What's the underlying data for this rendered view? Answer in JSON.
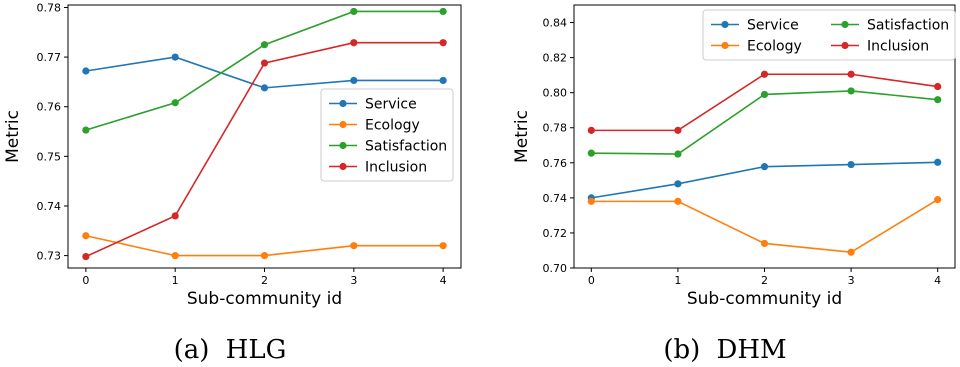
{
  "figure": {
    "panels": [
      {
        "caption_tag": "(a)",
        "caption_name": "HLG"
      },
      {
        "caption_tag": "(b)",
        "caption_name": "DHM"
      }
    ]
  },
  "colors": {
    "Service": "#1f77b4",
    "Ecology": "#ff7f0e",
    "Satisfaction": "#2ca02c",
    "Inclusion": "#d62728"
  },
  "chart_data": [
    {
      "type": "line",
      "title": "",
      "xlabel": "Sub-community id",
      "ylabel": "Metric",
      "x": [
        0,
        1,
        2,
        3,
        4
      ],
      "xticks": [
        "0",
        "1",
        "2",
        "3",
        "4"
      ],
      "ylim": [
        0.7275,
        0.7805
      ],
      "yticks": [
        0.73,
        0.74,
        0.75,
        0.76,
        0.77,
        0.78
      ],
      "ytick_labels": [
        "0.73",
        "0.74",
        "0.75",
        "0.76",
        "0.77",
        "0.78"
      ],
      "legend_position": "center-right",
      "legend_columns": 1,
      "grid": false,
      "series": [
        {
          "name": "Service",
          "values": [
            0.7672,
            0.77,
            0.7638,
            0.7653,
            0.7653
          ]
        },
        {
          "name": "Ecology",
          "values": [
            0.734,
            0.73,
            0.73,
            0.732,
            0.732
          ]
        },
        {
          "name": "Satisfaction",
          "values": [
            0.7553,
            0.7608,
            0.7725,
            0.7792,
            0.7792
          ]
        },
        {
          "name": "Inclusion",
          "values": [
            0.7298,
            0.738,
            0.7688,
            0.7729,
            0.7729
          ]
        }
      ]
    },
    {
      "type": "line",
      "title": "",
      "xlabel": "Sub-community id",
      "ylabel": "Metric",
      "x": [
        0,
        1,
        2,
        3,
        4
      ],
      "xticks": [
        "0",
        "1",
        "2",
        "3",
        "4"
      ],
      "ylim": [
        0.7,
        0.85
      ],
      "yticks": [
        0.7,
        0.72,
        0.74,
        0.76,
        0.78,
        0.8,
        0.82,
        0.84
      ],
      "ytick_labels": [
        "0.70",
        "0.72",
        "0.74",
        "0.76",
        "0.78",
        "0.80",
        "0.82",
        "0.84"
      ],
      "legend_position": "top-right",
      "legend_columns": 2,
      "grid": false,
      "series": [
        {
          "name": "Service",
          "values": [
            0.74,
            0.748,
            0.7578,
            0.759,
            0.7603
          ]
        },
        {
          "name": "Ecology",
          "values": [
            0.738,
            0.738,
            0.714,
            0.709,
            0.739
          ]
        },
        {
          "name": "Satisfaction",
          "values": [
            0.7655,
            0.765,
            0.799,
            0.801,
            0.796
          ]
        },
        {
          "name": "Inclusion",
          "values": [
            0.7785,
            0.7785,
            0.8105,
            0.8105,
            0.8035
          ]
        }
      ]
    }
  ]
}
